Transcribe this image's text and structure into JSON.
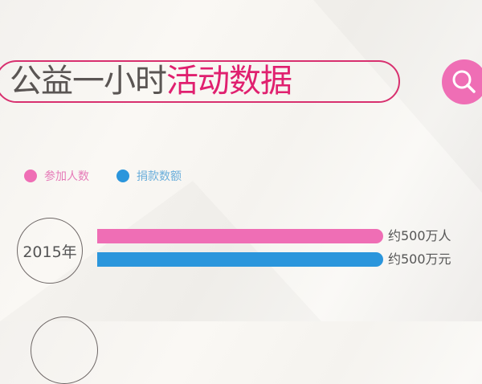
{
  "header": {
    "title_part1": "公益一小时",
    "title_part2": "活动数据",
    "search_icon": "search-icon"
  },
  "colors": {
    "pink": "#ef6eb5",
    "blue": "#2b96dc",
    "title_accent": "#e0206f"
  },
  "chart_data": {
    "type": "bar",
    "orientation": "horizontal",
    "categories": [
      "2015年"
    ],
    "series": [
      {
        "name": "参加人数",
        "values": [
          500
        ],
        "unit": "万人",
        "labels": [
          "约500万人"
        ],
        "color": "#ef6eb5"
      },
      {
        "name": "捐款数额",
        "values": [
          500
        ],
        "unit": "万元",
        "labels": [
          "约500万元"
        ],
        "color": "#2b96dc"
      }
    ],
    "legend": "top-left"
  }
}
